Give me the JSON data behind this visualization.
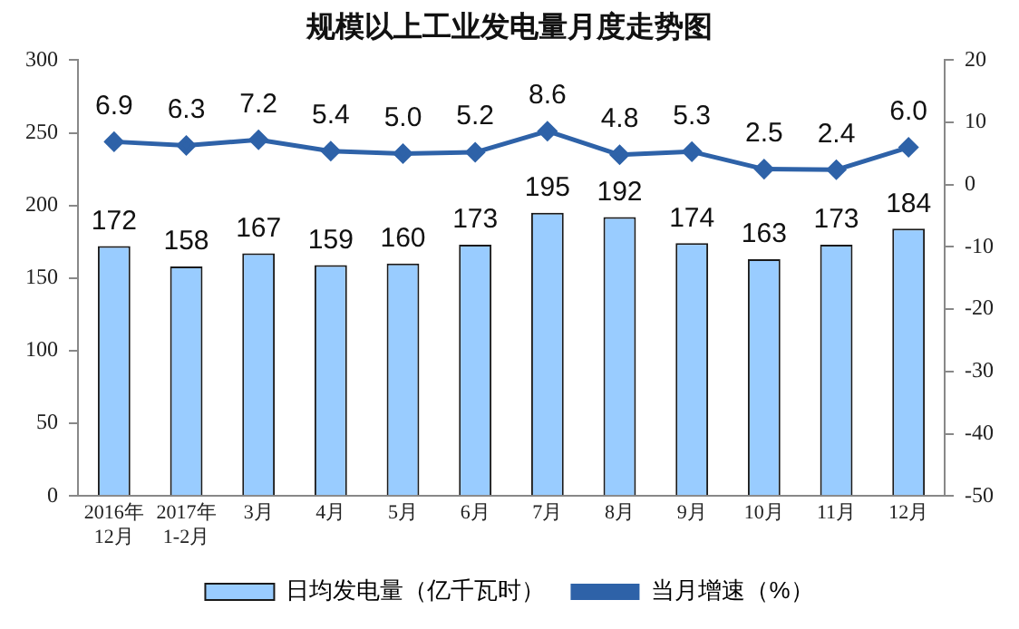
{
  "chart_data": {
    "type": "bar",
    "title": "规模以上工业发电量月度走势图",
    "categories": [
      "2016年\n12月",
      "2017年\n1-2月",
      "3月",
      "4月",
      "5月",
      "6月",
      "7月",
      "8月",
      "9月",
      "10月",
      "11月",
      "12月"
    ],
    "series": [
      {
        "name": "日均发电量（亿千瓦时）",
        "color": "#99ccff",
        "values": [
          172,
          158,
          167,
          159,
          160,
          173,
          195,
          192,
          174,
          163,
          173,
          184
        ]
      },
      {
        "name": "当月增速（%）",
        "type": "line",
        "axis": "y2",
        "color": "#2e62a8",
        "marker": "diamond",
        "values": [
          6.9,
          6.3,
          7.2,
          5.4,
          5.0,
          5.2,
          8.6,
          4.8,
          5.3,
          2.5,
          2.4,
          6.0
        ],
        "value_labels": [
          "6.9",
          "6.3",
          "7.2",
          "5.4",
          "5.0",
          "5.2",
          "8.6",
          "4.8",
          "5.3",
          "2.5",
          "2.4",
          "6.0"
        ]
      }
    ],
    "ylim": [
      0,
      300
    ],
    "yticks": [
      0,
      50,
      100,
      150,
      200,
      250,
      300
    ],
    "y2lim": [
      -50,
      20
    ],
    "y2ticks": [
      -50,
      -40,
      -30,
      -20,
      -10,
      0,
      10,
      20
    ],
    "data_labels": true,
    "grid": false,
    "legend": "bottom"
  }
}
